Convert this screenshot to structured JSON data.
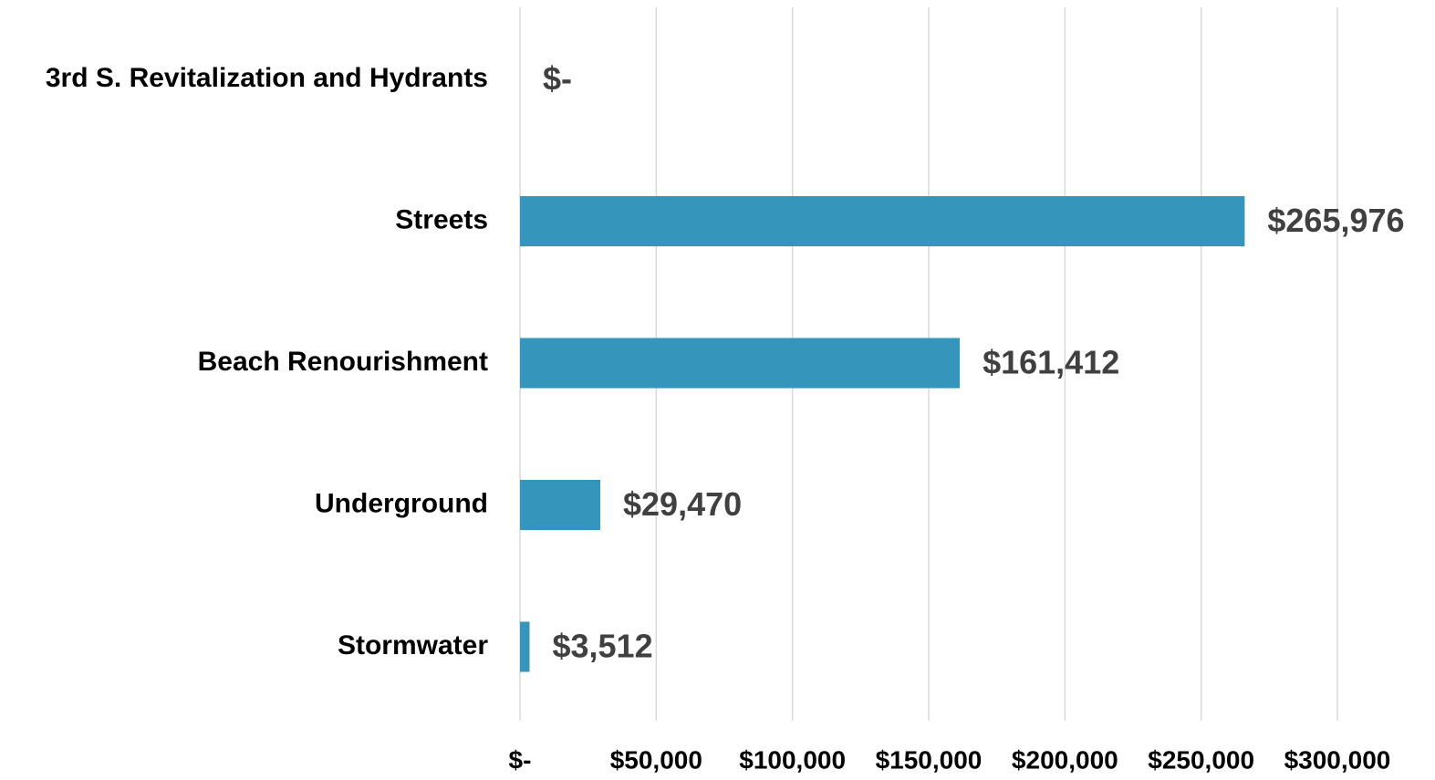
{
  "chart_data": {
    "type": "bar",
    "orientation": "horizontal",
    "categories": [
      "3rd S. Revitalization and Hydrants",
      "Streets",
      "Beach Renourishment",
      "Underground",
      "Stormwater"
    ],
    "values": [
      0,
      265976,
      161412,
      29470,
      3512
    ],
    "value_labels": [
      "$-",
      "$265,976",
      "$161,412",
      "$29,470",
      "$3,512"
    ],
    "color": "#3595bb",
    "xlim": [
      0,
      300000
    ],
    "xticks": [
      {
        "value": 0,
        "label": "$-"
      },
      {
        "value": 50000,
        "label": "$50,000"
      },
      {
        "value": 100000,
        "label": "$100,000"
      },
      {
        "value": 150000,
        "label": "$150,000"
      },
      {
        "value": 200000,
        "label": "$200,000"
      },
      {
        "value": 250000,
        "label": "$250,000"
      },
      {
        "value": 300000,
        "label": "$300,000"
      }
    ],
    "grid": true
  }
}
